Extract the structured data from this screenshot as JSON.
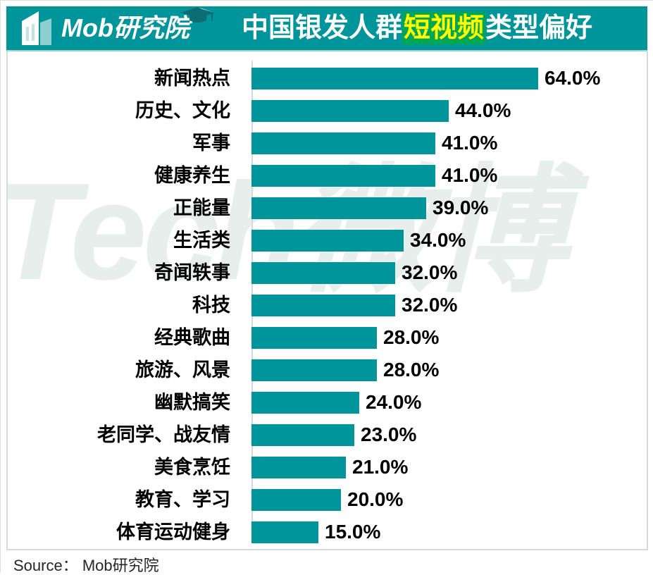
{
  "header": {
    "logo": {
      "text": "Mob研究院",
      "building_icon": "building-icon",
      "cap_icon": "graduation-cap-icon"
    },
    "title": {
      "prefix": "中国银发人群",
      "highlight": "短视频",
      "suffix": "类型偏好"
    }
  },
  "watermark": {
    "text": "Tech微博"
  },
  "chart_data": {
    "type": "bar",
    "orientation": "horizontal",
    "title": "中国银发人群短视频类型偏好",
    "categories": [
      "新闻热点",
      "历史、文化",
      "军事",
      "健康养生",
      "正能量",
      "生活类",
      "奇闻轶事",
      "科技",
      "经典歌曲",
      "旅游、风景",
      "幽默搞笑",
      "老同学、战友情",
      "美食烹饪",
      "教育、学习",
      "体育运动健身"
    ],
    "values": [
      64.0,
      44.0,
      41.0,
      41.0,
      39.0,
      34.0,
      32.0,
      32.0,
      28.0,
      28.0,
      24.0,
      23.0,
      21.0,
      20.0,
      15.0
    ],
    "value_labels": [
      "64.0%",
      "44.0%",
      "41.0%",
      "41.0%",
      "39.0%",
      "34.0%",
      "32.0%",
      "32.0%",
      "28.0%",
      "28.0%",
      "24.0%",
      "23.0%",
      "21.0%",
      "20.0%",
      "15.0%"
    ],
    "xlim": [
      0,
      70
    ],
    "axis_visible": false,
    "grid": false,
    "legend": "none",
    "bar_color": "#00949b",
    "label_color": "#000000"
  },
  "footer": {
    "source_text": "Source： Mob研究院"
  },
  "colors": {
    "header_bg": "#00949b",
    "highlight_bg": "#00a651",
    "highlight_text": "#ffff00",
    "title_text": "#ffffff",
    "watermark": "#e7eeec",
    "panel_border": "#d9d9d9"
  }
}
